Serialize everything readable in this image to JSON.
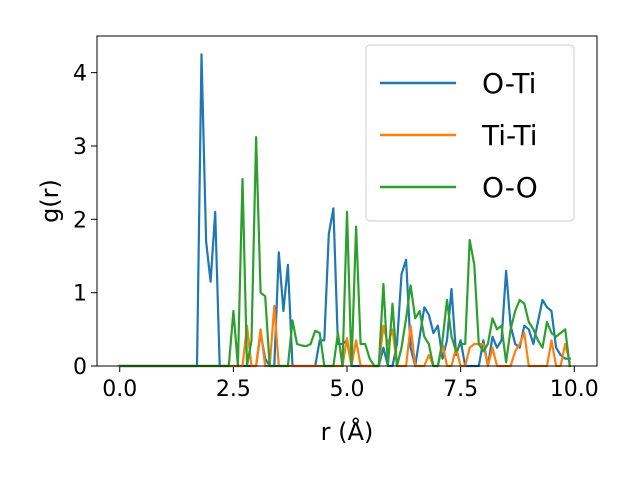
{
  "chart_data": {
    "type": "line",
    "title": "",
    "xlabel": "r (Å)",
    "ylabel": "g(r)",
    "xlim": [
      -0.5,
      10.5
    ],
    "ylim": [
      0,
      4.5
    ],
    "xticks": [
      0.0,
      2.5,
      5.0,
      7.5,
      10.0
    ],
    "xtick_labels": [
      "0.0",
      "2.5",
      "5.0",
      "7.5",
      "10.0"
    ],
    "yticks": [
      0,
      1,
      2,
      3,
      4
    ],
    "ytick_labels": [
      "0",
      "1",
      "2",
      "3",
      "4"
    ],
    "grid": false,
    "legend_position": "top-right",
    "series": [
      {
        "name": "O-Ti",
        "color": "#1f77b4",
        "x": [
          0.0,
          1.7,
          1.8,
          1.9,
          2.0,
          2.1,
          2.2,
          2.3,
          3.0,
          3.1,
          3.2,
          3.3,
          3.4,
          3.5,
          3.6,
          3.7,
          3.8,
          3.9,
          4.0,
          4.3,
          4.4,
          4.5,
          4.6,
          4.7,
          4.8,
          4.9,
          5.0,
          5.1,
          5.2,
          5.3,
          5.4,
          5.5,
          5.6,
          5.7,
          5.8,
          5.9,
          6.0,
          6.1,
          6.2,
          6.3,
          6.4,
          6.5,
          6.6,
          6.7,
          6.8,
          6.9,
          7.0,
          7.1,
          7.2,
          7.3,
          7.4,
          7.5,
          7.6,
          7.7,
          7.8,
          7.9,
          8.0,
          8.1,
          8.2,
          8.3,
          8.4,
          8.5,
          8.6,
          8.7,
          8.8,
          8.9,
          9.0,
          9.1,
          9.2,
          9.3,
          9.4,
          9.5,
          9.6,
          9.7,
          9.8,
          9.9
        ],
        "y": [
          0.0,
          0.0,
          4.25,
          1.7,
          1.15,
          2.1,
          0.0,
          0.0,
          0.0,
          0.45,
          0.1,
          0.0,
          0.0,
          1.55,
          0.75,
          1.38,
          0.0,
          0.0,
          0.0,
          0.0,
          0.35,
          0.35,
          1.8,
          2.15,
          0.3,
          0.3,
          0.35,
          0.0,
          0.0,
          0.0,
          0.0,
          0.0,
          0.0,
          0.0,
          0.25,
          0.0,
          0.0,
          0.3,
          1.25,
          1.45,
          0.25,
          0.0,
          0.4,
          0.8,
          0.7,
          0.45,
          0.55,
          0.1,
          0.35,
          1.05,
          0.15,
          0.35,
          0.0,
          0.0,
          0.0,
          0.0,
          0.35,
          0.0,
          0.4,
          0.25,
          0.35,
          1.3,
          0.55,
          0.3,
          0.25,
          0.55,
          0.5,
          0.3,
          0.6,
          0.9,
          0.8,
          0.75,
          0.25,
          0.15,
          0.1,
          0.1
        ]
      },
      {
        "name": "Ti-Ti",
        "color": "#ff7f0e",
        "x": [
          0.0,
          2.6,
          2.7,
          2.8,
          2.9,
          3.0,
          3.1,
          3.2,
          3.3,
          3.4,
          3.5,
          3.6,
          3.7,
          4.8,
          4.9,
          5.0,
          5.1,
          5.2,
          5.3,
          5.4,
          5.5,
          5.6,
          5.7,
          5.8,
          5.9,
          6.0,
          6.1,
          6.2,
          6.3,
          6.4,
          6.5,
          6.6,
          6.7,
          6.8,
          6.9,
          7.0,
          7.1,
          7.2,
          7.3,
          7.4,
          7.5,
          7.6,
          7.7,
          7.8,
          7.9,
          8.0,
          8.1,
          8.2,
          8.3,
          8.4,
          8.5,
          8.6,
          8.7,
          8.8,
          8.9,
          9.0,
          9.1,
          9.2,
          9.3,
          9.4,
          9.5,
          9.6,
          9.7,
          9.8,
          9.9
        ],
        "y": [
          0.0,
          0.0,
          0.0,
          0.55,
          0.0,
          0.0,
          0.5,
          0.0,
          0.0,
          0.82,
          0.0,
          0.0,
          0.0,
          0.0,
          0.0,
          0.38,
          0.0,
          0.35,
          0.0,
          0.0,
          0.0,
          0.0,
          0.0,
          0.55,
          0.3,
          0.5,
          0.0,
          0.0,
          0.0,
          0.55,
          0.0,
          0.0,
          0.0,
          0.15,
          0.0,
          0.0,
          0.3,
          0.0,
          0.0,
          0.25,
          0.0,
          0.0,
          0.25,
          0.3,
          0.3,
          0.3,
          0.0,
          0.25,
          0.0,
          0.0,
          0.0,
          0.0,
          0.2,
          0.3,
          0.45,
          0.0,
          0.0,
          0.0,
          0.0,
          0.0,
          0.35,
          0.0,
          0.0,
          0.3,
          0.05
        ]
      },
      {
        "name": "O-O",
        "color": "#2ca02c",
        "x": [
          0.0,
          2.4,
          2.5,
          2.6,
          2.7,
          2.8,
          2.9,
          3.0,
          3.1,
          3.2,
          3.3,
          3.4,
          3.5,
          3.6,
          3.7,
          3.8,
          3.9,
          4.0,
          4.1,
          4.2,
          4.3,
          4.4,
          4.5,
          4.6,
          4.7,
          4.8,
          4.9,
          5.0,
          5.1,
          5.2,
          5.3,
          5.4,
          5.5,
          5.6,
          5.7,
          5.8,
          5.9,
          6.0,
          6.1,
          6.2,
          6.3,
          6.4,
          6.5,
          6.6,
          6.7,
          6.8,
          6.9,
          7.0,
          7.1,
          7.2,
          7.3,
          7.4,
          7.5,
          7.6,
          7.7,
          7.8,
          7.9,
          8.0,
          8.1,
          8.2,
          8.3,
          8.4,
          8.5,
          8.6,
          8.7,
          8.8,
          8.9,
          9.0,
          9.1,
          9.2,
          9.3,
          9.4,
          9.5,
          9.6,
          9.7,
          9.8,
          9.9
        ],
        "y": [
          0.0,
          0.0,
          0.75,
          0.0,
          2.55,
          0.0,
          0.35,
          3.12,
          1.0,
          0.95,
          0.0,
          0.0,
          0.0,
          0.0,
          0.0,
          0.62,
          0.3,
          0.28,
          0.27,
          0.3,
          0.48,
          0.45,
          0.0,
          0.0,
          0.0,
          0.45,
          0.0,
          2.1,
          0.0,
          1.9,
          0.3,
          0.3,
          0.1,
          0.0,
          0.0,
          1.12,
          0.0,
          0.85,
          0.0,
          0.25,
          0.65,
          1.1,
          0.65,
          0.75,
          0.4,
          0.3,
          0.0,
          0.0,
          0.35,
          0.9,
          0.4,
          0.2,
          0.3,
          0.3,
          1.72,
          1.38,
          0.3,
          0.2,
          0.3,
          0.65,
          0.5,
          0.55,
          0.05,
          0.5,
          0.75,
          0.9,
          0.85,
          0.6,
          0.5,
          0.35,
          0.25,
          0.6,
          0.45,
          0.4,
          0.45,
          0.5,
          0.0
        ]
      }
    ]
  }
}
